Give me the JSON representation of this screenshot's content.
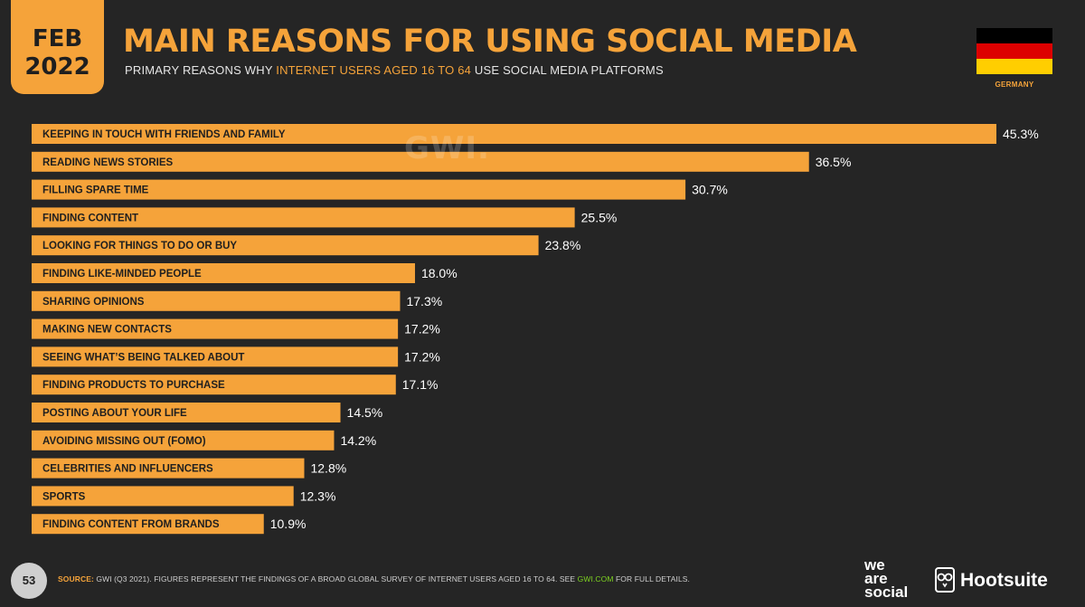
{
  "header": {
    "month": "FEB",
    "year": "2022",
    "title": "MAIN REASONS FOR USING SOCIAL MEDIA",
    "subtitle_pre": "PRIMARY REASONS WHY ",
    "subtitle_highlight": "INTERNET USERS AGED 16 TO 64",
    "subtitle_post": " USE SOCIAL MEDIA PLATFORMS",
    "country": "GERMANY"
  },
  "watermark": "GWI.",
  "colors": {
    "accent": "#f5a33a",
    "background": "#252525",
    "flag": [
      "#000000",
      "#dd0000",
      "#ffce00"
    ]
  },
  "chart_data": {
    "type": "bar",
    "orientation": "horizontal",
    "categories": [
      "KEEPING IN TOUCH WITH FRIENDS AND FAMILY",
      "READING NEWS STORIES",
      "FILLING SPARE TIME",
      "FINDING CONTENT",
      "LOOKING FOR THINGS TO DO OR BUY",
      "FINDING LIKE-MINDED PEOPLE",
      "SHARING OPINIONS",
      "MAKING NEW CONTACTS",
      "SEEING WHAT’S BEING TALKED ABOUT",
      "FINDING PRODUCTS TO PURCHASE",
      "POSTING ABOUT YOUR LIFE",
      "AVOIDING MISSING OUT (FOMO)",
      "CELEBRITIES AND INFLUENCERS",
      "SPORTS",
      "FINDING CONTENT FROM BRANDS"
    ],
    "values": [
      45.3,
      36.5,
      30.7,
      25.5,
      23.8,
      18.0,
      17.3,
      17.2,
      17.2,
      17.1,
      14.5,
      14.2,
      12.8,
      12.3,
      10.9
    ],
    "value_labels": [
      "45.3%",
      "36.5%",
      "30.7%",
      "25.5%",
      "23.8%",
      "18.0%",
      "17.3%",
      "17.2%",
      "17.2%",
      "17.1%",
      "14.5%",
      "14.2%",
      "12.8%",
      "12.3%",
      "10.9%"
    ],
    "unit": "%",
    "bar_color": "#f5a33a"
  },
  "footer": {
    "page_number": "53",
    "source_label": "SOURCE:",
    "source_text": " GWI (Q3 2021). FIGURES REPRESENT THE FINDINGS OF A BROAD GLOBAL SURVEY OF INTERNET USERS AGED 16 TO 64. SEE ",
    "source_link": "GWI.COM",
    "source_tail": " FOR FULL DETAILS.",
    "brand1_line1": "we",
    "brand1_line2": "are",
    "brand1_line3": "social",
    "brand2": "Hootsuite"
  }
}
